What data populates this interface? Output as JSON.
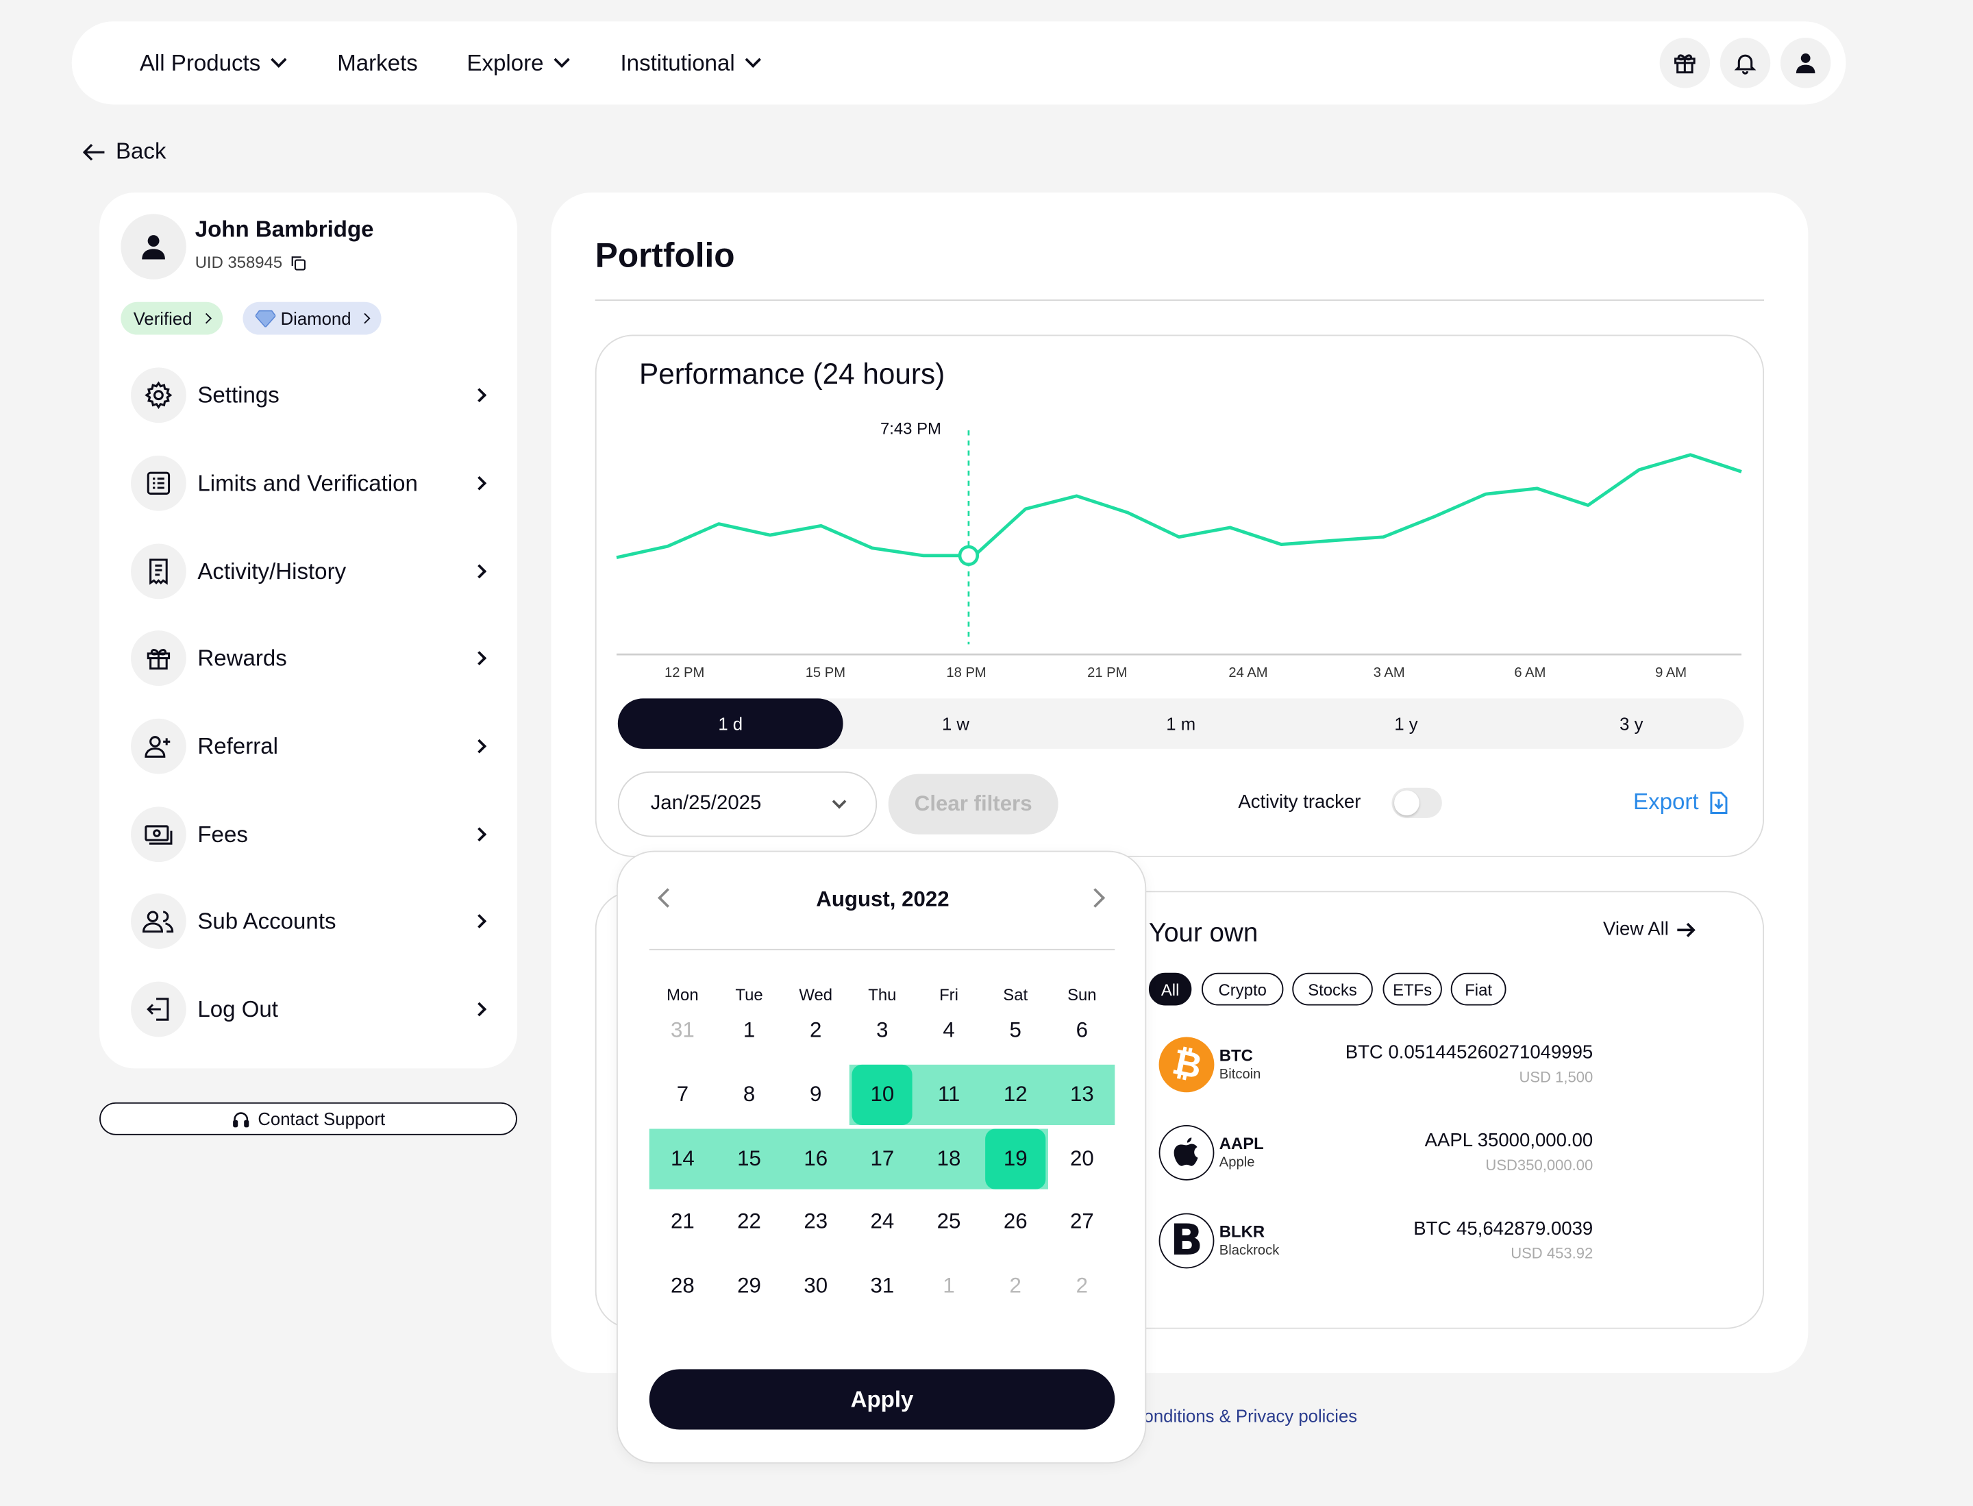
{
  "nav": {
    "items": [
      "All Products",
      "Markets",
      "Explore",
      "Institutional"
    ]
  },
  "back_label": "Back",
  "user": {
    "name": "John Bambridge",
    "uid": "UID 358945",
    "badges": [
      "Verified",
      "Diamond"
    ]
  },
  "sidebar": {
    "items": [
      {
        "label": "Settings",
        "icon": "gear-icon"
      },
      {
        "label": "Limits and Verification",
        "icon": "list-icon"
      },
      {
        "label": "Activity/History",
        "icon": "receipt-icon"
      },
      {
        "label": "Rewards",
        "icon": "gift-icon"
      },
      {
        "label": "Referral",
        "icon": "user-plus-icon"
      },
      {
        "label": "Fees",
        "icon": "cash-icon"
      },
      {
        "label": "Sub Accounts",
        "icon": "users-icon"
      },
      {
        "label": "Log Out",
        "icon": "logout-icon"
      }
    ],
    "support_label": "Contact Support"
  },
  "portfolio": {
    "title": "Portfolio",
    "performance_title": "Performance (24 hours)",
    "ranges": [
      "1 d",
      "1 w",
      "1 m",
      "1 y",
      "3 y"
    ],
    "active_range": "1 d",
    "date_value": "Jan/25/2025",
    "clear_label": "Clear filters",
    "tracker_label": "Activity tracker",
    "export_label": "Export"
  },
  "chart_data": {
    "type": "line",
    "x_ticks": [
      "12 PM",
      "15 PM",
      "18 PM",
      "21 PM",
      "24 AM",
      "3 AM",
      "6 AM",
      "9 AM"
    ],
    "values": [
      42,
      48,
      60,
      54,
      59,
      47,
      43,
      43,
      68,
      75,
      66,
      53,
      58,
      49,
      51,
      53,
      64,
      76,
      79,
      70,
      89,
      97,
      88
    ],
    "marker_label": "7:43 PM",
    "marker_index": 6,
    "color": "#1fdca0"
  },
  "holdings": {
    "title": "Your own",
    "view_all": "View All",
    "filters": [
      "All",
      "Crypto",
      "Stocks",
      "ETFs",
      "Fiat"
    ],
    "assets": [
      {
        "symbol": "BTC",
        "name": "Bitcoin",
        "amount": "BTC 0.051445260271049995",
        "usd": "USD  1,500",
        "logo_color": "#f7931a"
      },
      {
        "symbol": "AAPL",
        "name": "Apple",
        "amount": "AAPL 35000,000.00",
        "usd": "USD350,000.00",
        "logo_color": "#0d0d1a"
      },
      {
        "symbol": "BLKR",
        "name": "Blackrock",
        "amount": "BTC 45,642879.0039",
        "usd": "USD 453.92",
        "logo_color": "#0d0d1a"
      }
    ]
  },
  "footer_link": "onditions & Privacy policies",
  "calendar": {
    "month_label": "August, 2022",
    "weekdays": [
      "Mon",
      "Tue",
      "Wed",
      "Thu",
      "Fri",
      "Sat",
      "Sun"
    ],
    "weeks": [
      [
        "31",
        "1",
        "2",
        "3",
        "4",
        "5",
        "6"
      ],
      [
        "7",
        "8",
        "9",
        "10",
        "11",
        "12",
        "13"
      ],
      [
        "14",
        "15",
        "16",
        "17",
        "18",
        "19",
        "20"
      ],
      [
        "21",
        "22",
        "23",
        "24",
        "25",
        "26",
        "27"
      ],
      [
        "28",
        "29",
        "30",
        "31",
        "1",
        "2",
        "2"
      ]
    ],
    "range_start": "10",
    "range_end": "19",
    "apply_label": "Apply"
  }
}
